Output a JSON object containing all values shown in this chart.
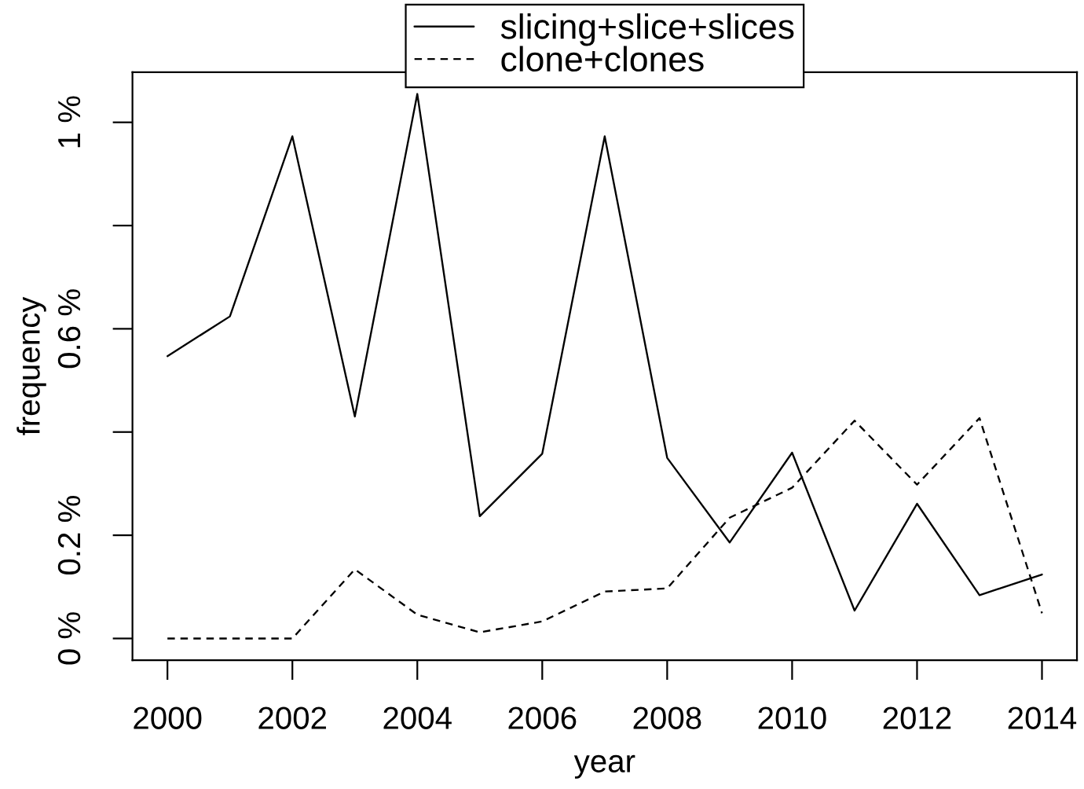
{
  "chart_data": {
    "type": "line",
    "xlabel": "year",
    "ylabel": "frequency",
    "x": [
      2000,
      2001,
      2002,
      2003,
      2004,
      2005,
      2006,
      2007,
      2008,
      2009,
      2010,
      2011,
      2012,
      2013,
      2014
    ],
    "series": [
      {
        "name": "slicing+slice+slices",
        "color": "#000000",
        "line_style": "solid",
        "values": [
          0.547,
          0.624,
          0.973,
          0.43,
          1.055,
          0.237,
          0.358,
          0.973,
          0.35,
          0.186,
          0.36,
          0.054,
          0.261,
          0.084,
          0.124
        ]
      },
      {
        "name": "clone+clones",
        "color": "#000000",
        "line_style": "dashed",
        "values": [
          0,
          0,
          0,
          0.134,
          0.046,
          0.012,
          0.033,
          0.091,
          0.097,
          0.234,
          0.292,
          0.422,
          0.298,
          0.427,
          0.049
        ]
      }
    ],
    "xlim": [
      1999.44,
      2014.56
    ],
    "xticks": [
      2000,
      2002,
      2004,
      2006,
      2008,
      2010,
      2012,
      2014
    ],
    "ylim": [
      -0.042,
      1.097
    ],
    "yticks": [
      {
        "value": 0,
        "label": "0 %"
      },
      {
        "value": 0.2,
        "label": "0.2 %"
      },
      {
        "value": 0.4,
        "label": null
      },
      {
        "value": 0.6,
        "label": "0.6 %"
      },
      {
        "value": 0.8,
        "label": null
      },
      {
        "value": 1,
        "label": "1 %"
      }
    ],
    "grid": false,
    "legend": "top",
    "marker": "none"
  }
}
